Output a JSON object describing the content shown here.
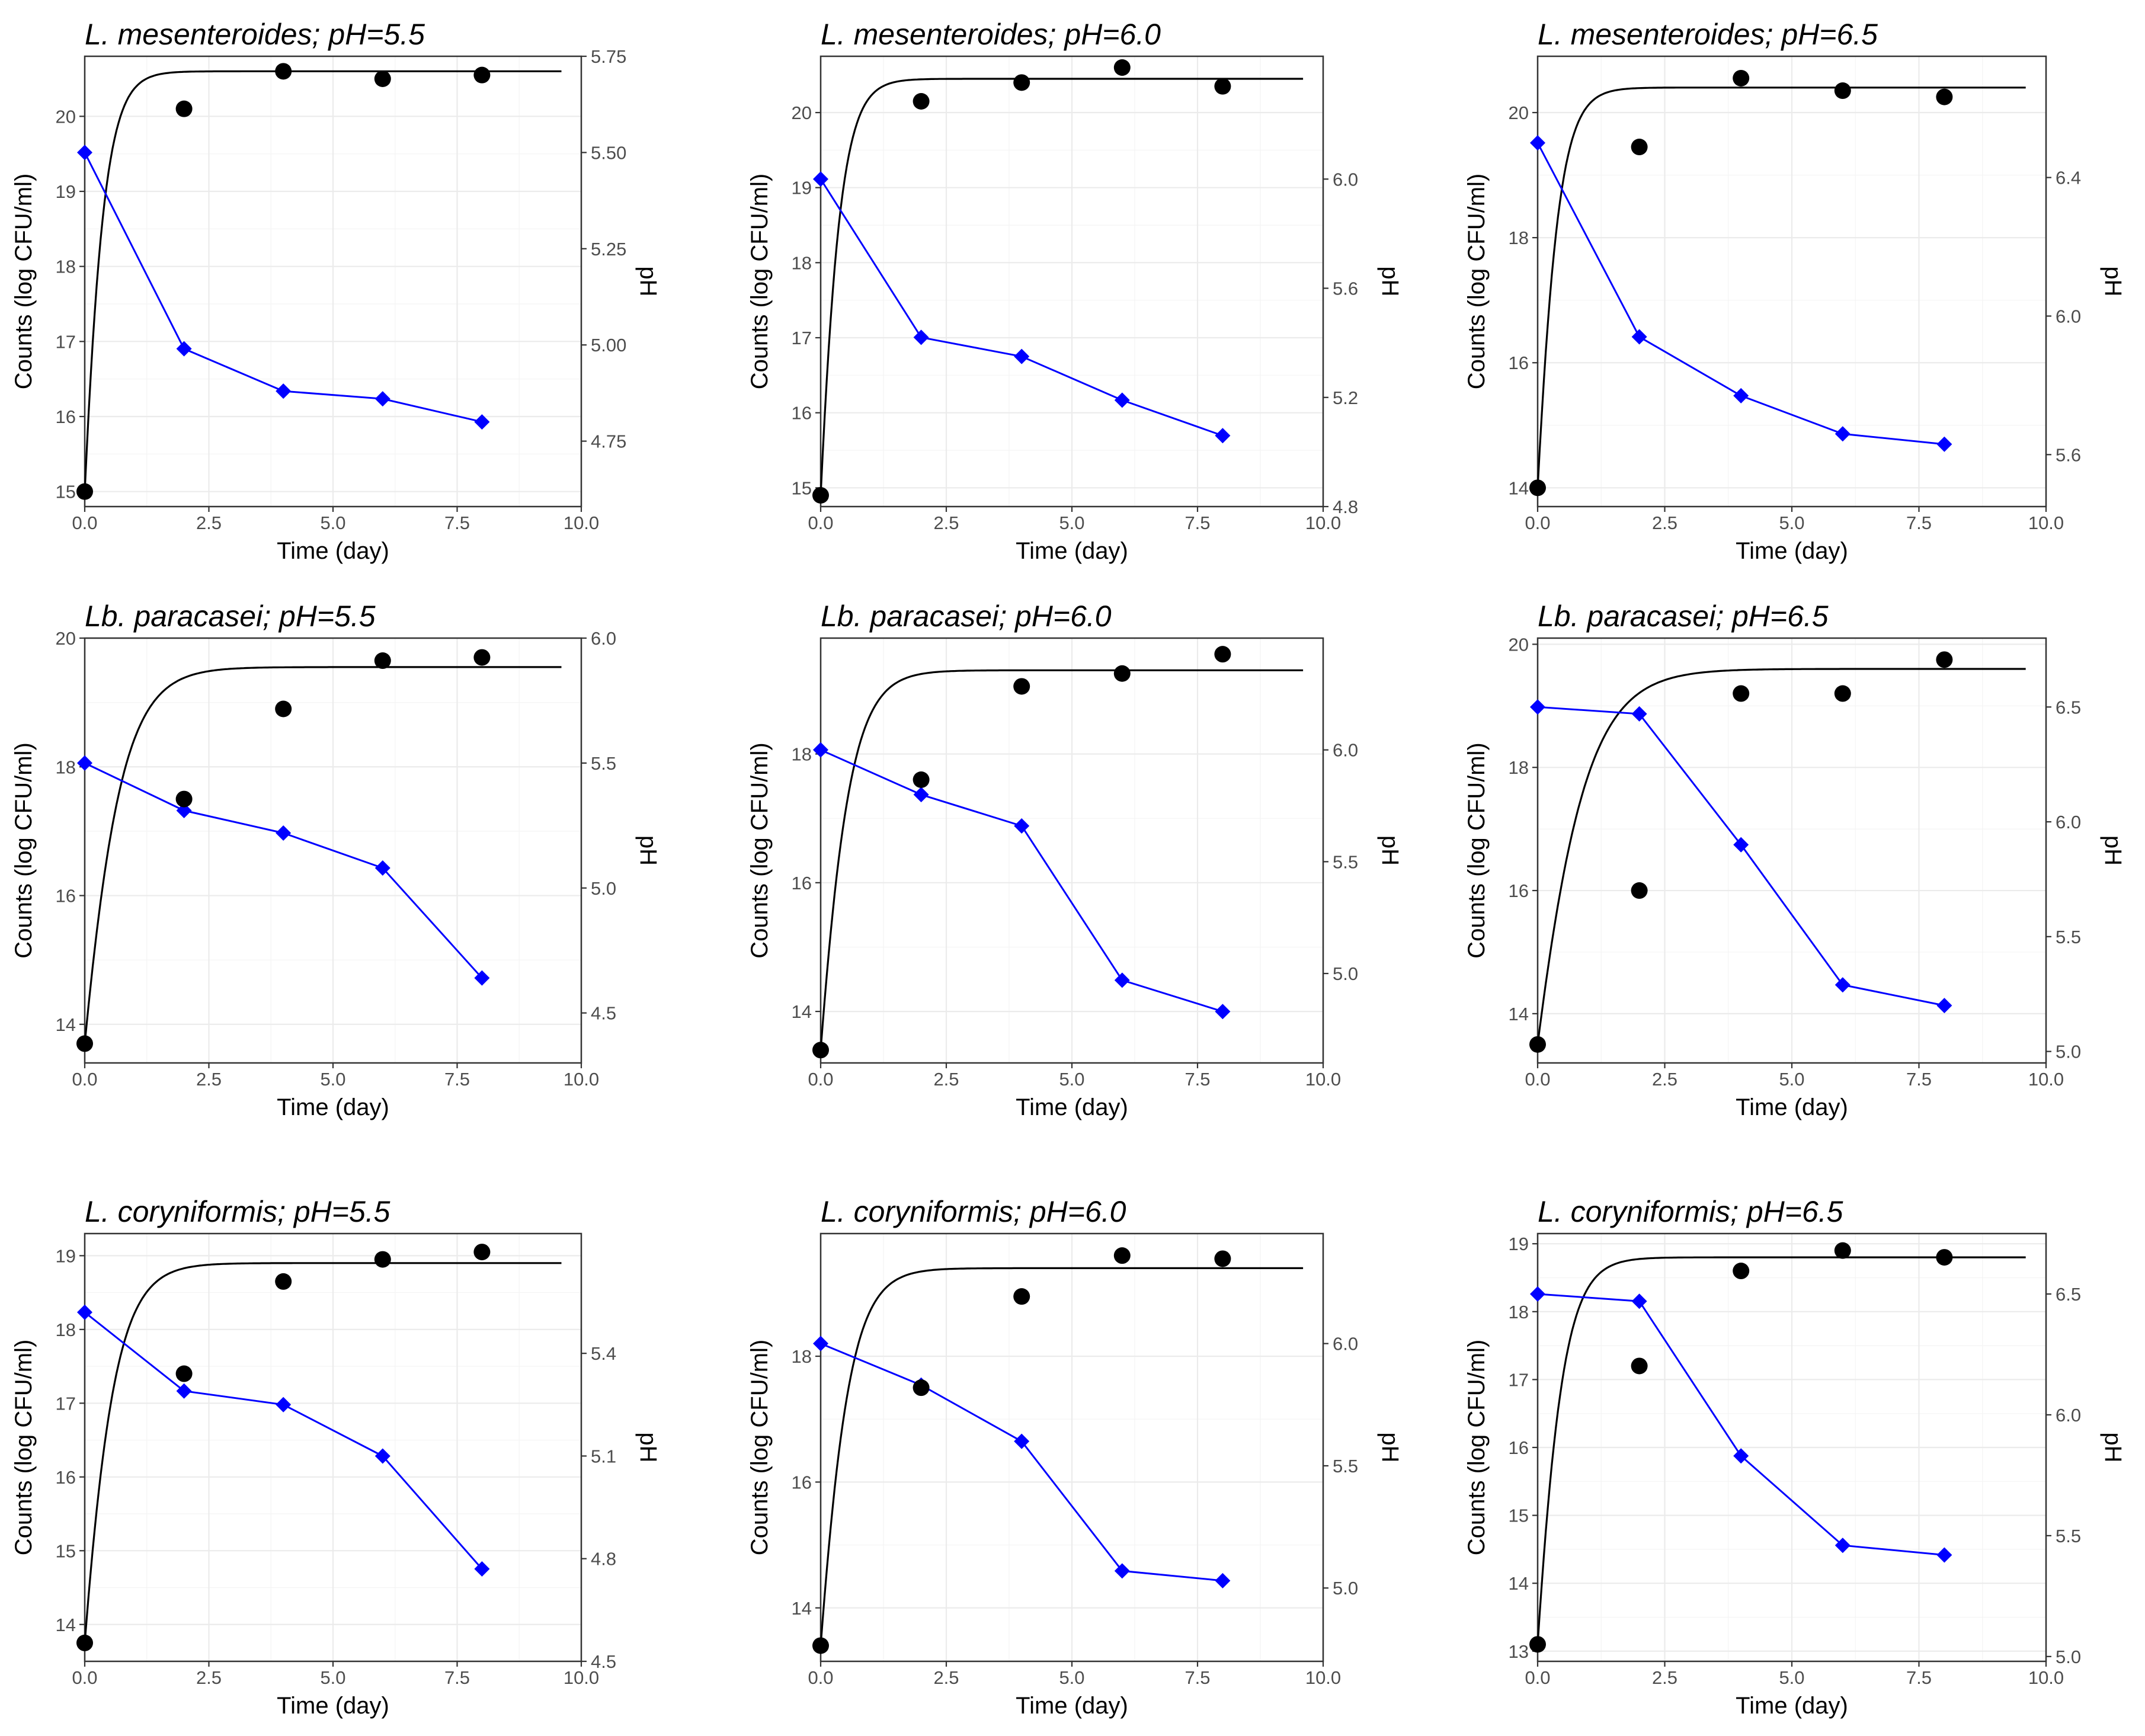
{
  "chart_data": [
    {
      "type": "line",
      "title": "L. mesenteroides; pH=5.5",
      "xlabel": "Time (day)",
      "ylabel": "Counts (log CFU/ml)",
      "y2label": "pH",
      "xlim": [
        0,
        10
      ],
      "xticks": [
        "0.0",
        "2.5",
        "5.0",
        "7.5",
        "10.0"
      ],
      "ylim": [
        14.8,
        20.8
      ],
      "yticks": [
        15,
        16,
        17,
        18,
        19,
        20
      ],
      "y2lim": [
        4.58,
        5.75
      ],
      "y2ticks": [
        "4.75",
        "5.00",
        "5.25",
        "5.50",
        "5.75"
      ],
      "grid": true,
      "counts": {
        "x": [
          0,
          2,
          4,
          6,
          8
        ],
        "y": [
          15.0,
          20.1,
          20.6,
          20.5,
          20.55
        ]
      },
      "fit": {
        "y0": 15.0,
        "ymax": 20.6,
        "mu": 3.5
      },
      "ph": {
        "x": [
          0,
          2,
          4,
          6,
          8
        ],
        "y": [
          5.5,
          4.99,
          4.88,
          4.86,
          4.8
        ]
      },
      "colors": {
        "counts": "#000000",
        "ph": "#0000ff"
      }
    },
    {
      "type": "line",
      "title": "L. mesenteroides; pH=6.0",
      "xlabel": "Time (day)",
      "ylabel": "Counts (log CFU/ml)",
      "y2label": "pH",
      "xlim": [
        0,
        10
      ],
      "xticks": [
        "0.0",
        "2.5",
        "5.0",
        "7.5",
        "10.0"
      ],
      "ylim": [
        14.75,
        20.75
      ],
      "yticks": [
        15,
        16,
        17,
        18,
        19,
        20
      ],
      "y2lim": [
        4.8,
        6.45
      ],
      "y2ticks": [
        "4.8",
        "5.2",
        "5.6",
        "6.0"
      ],
      "grid": true,
      "counts": {
        "x": [
          0,
          2,
          4,
          6,
          8
        ],
        "y": [
          14.9,
          20.15,
          20.4,
          20.6,
          20.35
        ]
      },
      "fit": {
        "y0": 14.9,
        "ymax": 20.45,
        "mu": 3.5
      },
      "ph": {
        "x": [
          0,
          2,
          4,
          6,
          8
        ],
        "y": [
          6.0,
          5.42,
          5.35,
          5.19,
          5.06
        ]
      },
      "colors": {
        "counts": "#000000",
        "ph": "#0000ff"
      }
    },
    {
      "type": "line",
      "title": "L. mesenteroides; pH=6.5",
      "xlabel": "Time (day)",
      "ylabel": "Counts (log CFU/ml)",
      "y2label": "pH",
      "xlim": [
        0,
        10
      ],
      "xticks": [
        "0.0",
        "2.5",
        "5.0",
        "7.5",
        "10.0"
      ],
      "ylim": [
        13.7,
        20.9
      ],
      "yticks": [
        14,
        16,
        18,
        20
      ],
      "y2lim": [
        5.45,
        6.75
      ],
      "y2ticks": [
        "5.6",
        "6.0",
        "6.4"
      ],
      "grid": true,
      "counts": {
        "x": [
          0,
          2,
          4,
          6,
          8
        ],
        "y": [
          14.0,
          19.45,
          20.55,
          20.35,
          20.25
        ]
      },
      "fit": {
        "y0": 14.0,
        "ymax": 20.4,
        "mu": 3.5
      },
      "ph": {
        "x": [
          0,
          2,
          4,
          6,
          8
        ],
        "y": [
          6.5,
          5.94,
          5.77,
          5.66,
          5.63
        ]
      },
      "colors": {
        "counts": "#000000",
        "ph": "#0000ff"
      }
    },
    {
      "type": "line",
      "title": "Lb. paracasei; pH=5.5",
      "xlabel": "Time (day)",
      "ylabel": "Counts (log CFU/ml)",
      "y2label": "pH",
      "xlim": [
        0,
        10
      ],
      "xticks": [
        "0.0",
        "2.5",
        "5.0",
        "7.5",
        "10.0"
      ],
      "ylim": [
        13.4,
        20.0
      ],
      "yticks": [
        14,
        16,
        18,
        20
      ],
      "y2lim": [
        4.3,
        6.0
      ],
      "y2ticks": [
        "4.5",
        "5.0",
        "5.5",
        "6.0"
      ],
      "grid": true,
      "counts": {
        "x": [
          0,
          2,
          4,
          6,
          8
        ],
        "y": [
          13.7,
          17.5,
          18.9,
          19.65,
          19.7
        ]
      },
      "fit": {
        "y0": 13.7,
        "ymax": 19.55,
        "mu": 1.95
      },
      "ph": {
        "x": [
          0,
          2,
          4,
          6,
          8
        ],
        "y": [
          5.5,
          5.31,
          5.22,
          5.08,
          4.64
        ]
      },
      "colors": {
        "counts": "#000000",
        "ph": "#0000ff"
      }
    },
    {
      "type": "line",
      "title": "Lb. paracasei; pH=6.0",
      "xlabel": "Time (day)",
      "ylabel": "Counts (log CFU/ml)",
      "y2label": "pH",
      "xlim": [
        0,
        10
      ],
      "xticks": [
        "0.0",
        "2.5",
        "5.0",
        "7.5",
        "10.0"
      ],
      "ylim": [
        13.2,
        19.8
      ],
      "yticks": [
        14,
        16,
        18
      ],
      "y2lim": [
        4.6,
        6.5
      ],
      "y2ticks": [
        "5.0",
        "5.5",
        "6.0"
      ],
      "grid": true,
      "counts": {
        "x": [
          0,
          2,
          4,
          6,
          8
        ],
        "y": [
          13.4,
          17.6,
          19.05,
          19.25,
          19.55
        ]
      },
      "fit": {
        "y0": 13.4,
        "ymax": 19.3,
        "mu": 2.5
      },
      "ph": {
        "x": [
          0,
          2,
          4,
          6,
          8
        ],
        "y": [
          6.0,
          5.8,
          5.66,
          4.97,
          4.83
        ]
      },
      "colors": {
        "counts": "#000000",
        "ph": "#0000ff"
      }
    },
    {
      "type": "line",
      "title": "Lb. paracasei; pH=6.5",
      "xlabel": "Time (day)",
      "ylabel": "Counts (log CFU/ml)",
      "y2label": "pH",
      "xlim": [
        0,
        10
      ],
      "xticks": [
        "0.0",
        "2.5",
        "5.0",
        "7.5",
        "10.0"
      ],
      "ylim": [
        13.2,
        20.1
      ],
      "yticks": [
        14,
        16,
        18,
        20
      ],
      "y2lim": [
        4.95,
        6.8
      ],
      "y2ticks": [
        "5.0",
        "5.5",
        "6.0",
        "6.5"
      ],
      "grid": true,
      "counts": {
        "x": [
          0,
          2,
          4,
          6,
          8
        ],
        "y": [
          13.5,
          16.0,
          19.2,
          19.2,
          19.75
        ]
      },
      "fit": {
        "y0": 13.5,
        "ymax": 19.6,
        "mu": 1.55
      },
      "ph": {
        "x": [
          0,
          2,
          4,
          6,
          8
        ],
        "y": [
          6.5,
          6.47,
          5.9,
          5.29,
          5.2
        ]
      },
      "colors": {
        "counts": "#000000",
        "ph": "#0000ff"
      }
    },
    {
      "type": "line",
      "title": "L. coryniformis; pH=5.5",
      "xlabel": "Time (day)",
      "ylabel": "Counts (log CFU/ml)",
      "y2label": "pH",
      "xlim": [
        0,
        10
      ],
      "xticks": [
        "0.0",
        "2.5",
        "5.0",
        "7.5",
        "10.0"
      ],
      "ylim": [
        13.5,
        19.3
      ],
      "yticks": [
        14,
        15,
        16,
        17,
        18,
        19
      ],
      "y2lim": [
        4.5,
        5.75
      ],
      "y2ticks": [
        "4.5",
        "4.8",
        "5.1",
        "5.4"
      ],
      "grid": true,
      "counts": {
        "x": [
          0,
          2,
          4,
          6,
          8
        ],
        "y": [
          13.75,
          17.4,
          18.65,
          18.95,
          19.05
        ]
      },
      "fit": {
        "y0": 13.75,
        "ymax": 18.9,
        "mu": 2.3
      },
      "ph": {
        "x": [
          0,
          2,
          4,
          6,
          8
        ],
        "y": [
          5.52,
          5.29,
          5.25,
          5.1,
          4.77
        ]
      },
      "colors": {
        "counts": "#000000",
        "ph": "#0000ff"
      }
    },
    {
      "type": "line",
      "title": "L. coryniformis; pH=6.0",
      "xlabel": "Time (day)",
      "ylabel": "Counts (log CFU/ml)",
      "y2label": "pH",
      "xlim": [
        0,
        10
      ],
      "xticks": [
        "0.0",
        "2.5",
        "5.0",
        "7.5",
        "10.0"
      ],
      "ylim": [
        13.15,
        19.95
      ],
      "yticks": [
        14,
        16,
        18
      ],
      "y2lim": [
        4.7,
        6.45
      ],
      "y2ticks": [
        "5.0",
        "5.5",
        "6.0"
      ],
      "grid": true,
      "counts": {
        "x": [
          0,
          2,
          4,
          6,
          8
        ],
        "y": [
          13.4,
          17.5,
          18.95,
          19.6,
          19.55
        ]
      },
      "fit": {
        "y0": 13.4,
        "ymax": 19.4,
        "mu": 2.55
      },
      "ph": {
        "x": [
          0,
          2,
          4,
          6,
          8
        ],
        "y": [
          6.0,
          5.83,
          5.6,
          5.07,
          5.03
        ]
      },
      "colors": {
        "counts": "#000000",
        "ph": "#0000ff"
      }
    },
    {
      "type": "line",
      "title": "L. coryniformis; pH=6.5",
      "xlabel": "Time (day)",
      "ylabel": "Counts (log CFU/ml)",
      "y2label": "pH",
      "xlim": [
        0,
        10
      ],
      "xticks": [
        "0.0",
        "2.5",
        "5.0",
        "7.5",
        "10.0"
      ],
      "ylim": [
        12.85,
        19.15
      ],
      "yticks": [
        13,
        14,
        15,
        16,
        17,
        18,
        19
      ],
      "y2lim": [
        4.98,
        6.75
      ],
      "y2ticks": [
        "5.0",
        "5.5",
        "6.0",
        "6.5"
      ],
      "grid": true,
      "counts": {
        "x": [
          0,
          2,
          4,
          6,
          8
        ],
        "y": [
          13.1,
          17.2,
          18.6,
          18.9,
          18.8
        ]
      },
      "fit": {
        "y0": 13.1,
        "ymax": 18.8,
        "mu": 2.9
      },
      "ph": {
        "x": [
          0,
          2,
          4,
          6,
          8
        ],
        "y": [
          6.5,
          6.47,
          5.83,
          5.46,
          5.42
        ]
      },
      "colors": {
        "counts": "#000000",
        "ph": "#0000ff"
      }
    }
  ]
}
